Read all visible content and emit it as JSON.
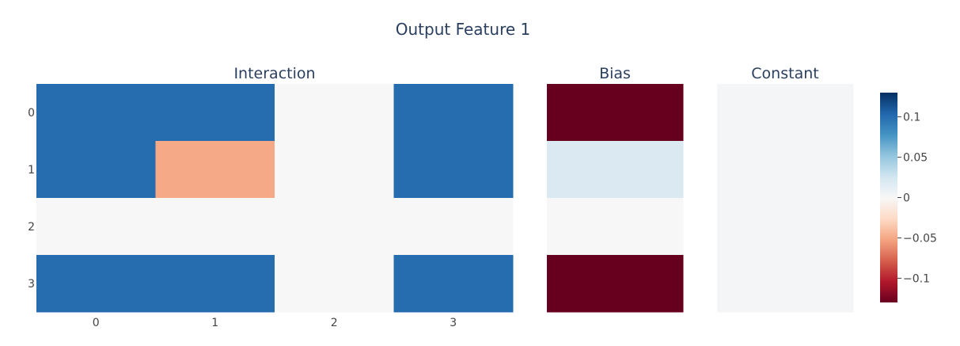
{
  "title": "Output Feature 1",
  "chart_data": {
    "type": "heatmap",
    "title": "Output Feature 1",
    "colorscale": "RdBu",
    "zmin": -0.13,
    "zmax": 0.13,
    "panels": [
      {
        "name": "interaction",
        "title": "Interaction",
        "x_ticks": [
          "0",
          "1",
          "2",
          "3"
        ],
        "y_ticks": [
          "0",
          "1",
          "2",
          "3"
        ],
        "z": [
          [
            0.1,
            0.1,
            0.0,
            0.1
          ],
          [
            0.1,
            -0.05,
            0.0,
            0.1
          ],
          [
            0.0,
            0.0,
            0.0,
            0.0
          ],
          [
            0.1,
            0.1,
            0.0,
            0.1
          ]
        ]
      },
      {
        "name": "bias",
        "title": "Bias",
        "z": [
          [
            -0.13
          ],
          [
            0.02
          ],
          [
            0.0
          ],
          [
            -0.13
          ]
        ]
      },
      {
        "name": "constant",
        "title": "Constant",
        "z": [
          [
            0.003
          ]
        ]
      }
    ],
    "colorbar": {
      "ticks": [
        {
          "value": 0.1,
          "label": "0.1"
        },
        {
          "value": 0.05,
          "label": "0.05"
        },
        {
          "value": 0,
          "label": "0"
        },
        {
          "value": -0.05,
          "label": "−0.05"
        },
        {
          "value": -0.1,
          "label": "−0.1"
        }
      ]
    }
  }
}
